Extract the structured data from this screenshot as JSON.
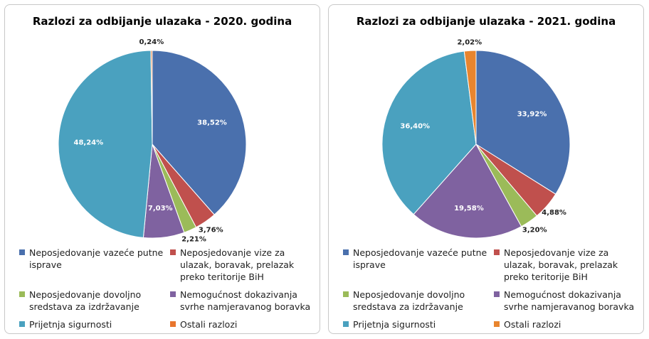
{
  "chart_data": [
    {
      "type": "pie",
      "title": "Razlozi za odbijanje ulazaka - 2020. godina",
      "categories": [
        "Neposjedovanje vazeće putne isprave",
        "Neposjedovanje vize za ulazak, boravak, prelazak preko teritorije BiH",
        "Neposjedovanje dovoljno sredstava za izdržavanje",
        "Nemogućnost dokazivanja svrhe namjeravanog boravka",
        "Prijetnja sigurnosti",
        "Ostali razlozi"
      ],
      "values": [
        38.52,
        3.76,
        2.21,
        7.03,
        48.24,
        0.24
      ],
      "value_labels": [
        "38,52%",
        "3,76%",
        "2,21%",
        "7,03%",
        "48,24%",
        "0,24%"
      ],
      "colors": [
        "#4a70ad",
        "#c0504d",
        "#9bbb59",
        "#7f62a0",
        "#4aa1bf",
        "#e8752e"
      ]
    },
    {
      "type": "pie",
      "title": "Razlozi za odbijanje ulazaka - 2021. godina",
      "categories": [
        "Neposjedovanje vazeće putne isprave",
        "Neposjedovanje vize za ulazak, boravak, prelazak preko teritorije BiH",
        "Neposjedovanje dovoljno sredstava za izdržavanje",
        "Nemogućnost dokazivanja svrhe namjeravanog boravka",
        "Prijetnja sigurnosti",
        "Ostali razlozi"
      ],
      "values": [
        33.92,
        4.88,
        3.2,
        19.58,
        36.4,
        2.02
      ],
      "value_labels": [
        "33,92%",
        "4,88%",
        "3,20%",
        "19,58%",
        "36,40%",
        "2,02%"
      ],
      "colors": [
        "#4a70ad",
        "#c0504d",
        "#9bbb59",
        "#7f62a0",
        "#4aa1bf",
        "#e8852e"
      ]
    }
  ]
}
